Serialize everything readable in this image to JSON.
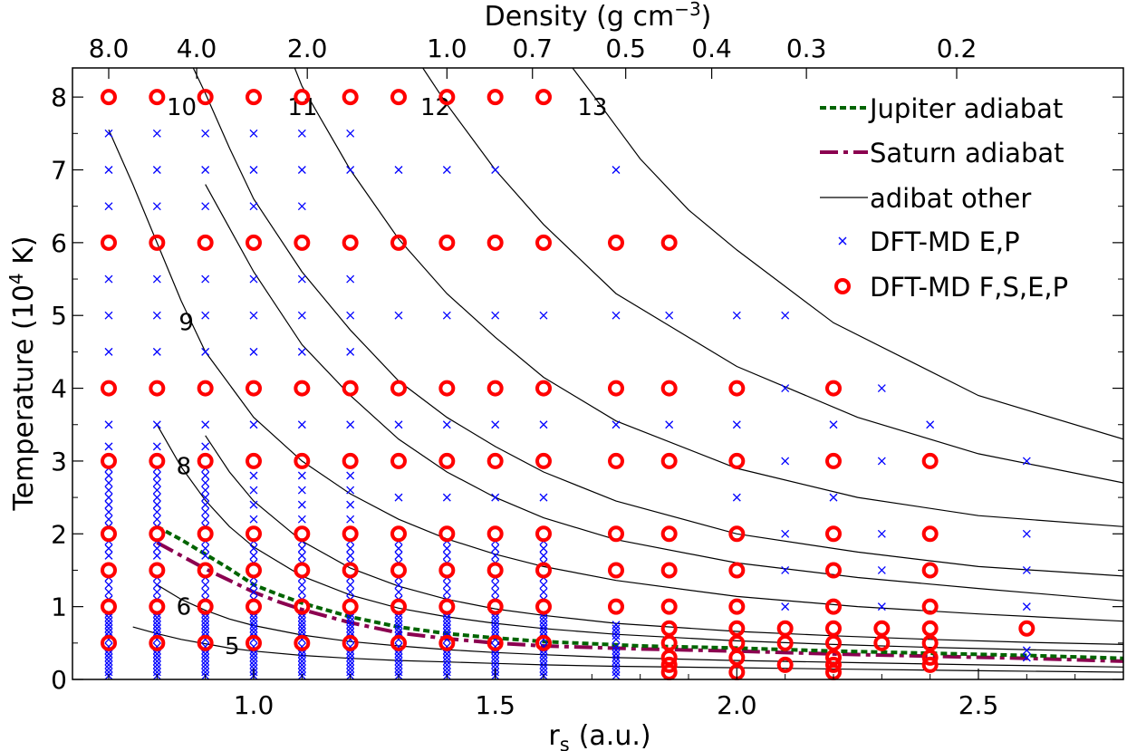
{
  "chart_data": {
    "type": "scatter",
    "xlabel": "r",
    "xlabel_sub": "s",
    "xlabel_unit": "(a.u.)",
    "ylabel_pre": "Temperature (10",
    "ylabel_sup": "4",
    "ylabel_post": " K)",
    "top_xlabel_pre": "Density (g cm",
    "top_xlabel_sup": "−3",
    "top_xlabel_post": ")",
    "xlim": [
      0.625,
      2.8
    ],
    "ylim": [
      0,
      8.4
    ],
    "x_ticks": [
      1.0,
      1.5,
      2.0,
      2.5
    ],
    "x_tick_labels": [
      "1.0",
      "1.5",
      "2.0",
      "2.5"
    ],
    "y_ticks": [
      0,
      1,
      2,
      3,
      4,
      5,
      6,
      7,
      8
    ],
    "y_tick_labels": [
      "0",
      "1",
      "2",
      "3",
      "4",
      "5",
      "6",
      "7",
      "8"
    ],
    "top_ticks": [
      {
        "rs": 0.7,
        "label": "8.0"
      },
      {
        "rs": 0.882,
        "label": "4.0"
      },
      {
        "rs": 1.111,
        "label": "2.0"
      },
      {
        "rs": 1.4,
        "label": "1.0"
      },
      {
        "rs": 1.577,
        "label": "0.7"
      },
      {
        "rs": 1.77,
        "label": "0.5"
      },
      {
        "rs": 1.948,
        "label": "0.4"
      },
      {
        "rs": 2.144,
        "label": "0.3"
      },
      {
        "rs": 2.455,
        "label": "0.2"
      }
    ],
    "series": [
      {
        "name": "Jupiter adiabat",
        "style": "dotted",
        "color": "#006400",
        "x": [
          0.8,
          0.85,
          0.9,
          0.95,
          1.0,
          1.05,
          1.1,
          1.2,
          1.3,
          1.4,
          1.5,
          1.6,
          1.8,
          2.0,
          2.2,
          2.4,
          2.6,
          2.8
        ],
        "y": [
          2.1,
          1.92,
          1.72,
          1.52,
          1.3,
          1.17,
          1.05,
          0.86,
          0.72,
          0.63,
          0.57,
          0.52,
          0.46,
          0.43,
          0.39,
          0.36,
          0.33,
          0.29
        ]
      },
      {
        "name": "Saturn adiabat",
        "style": "dashed",
        "color": "#8b0050",
        "x": [
          0.8,
          0.85,
          0.9,
          0.95,
          1.0,
          1.05,
          1.1,
          1.2,
          1.3,
          1.4,
          1.5,
          1.6,
          1.8,
          2.0,
          2.2,
          2.4,
          2.6,
          2.8
        ],
        "y": [
          1.88,
          1.7,
          1.52,
          1.36,
          1.2,
          1.07,
          0.96,
          0.78,
          0.64,
          0.56,
          0.5,
          0.46,
          0.42,
          0.39,
          0.35,
          0.32,
          0.29,
          0.25
        ]
      },
      {
        "name": "adibat other",
        "style": "solid",
        "color": "#000000"
      },
      {
        "name": "DFT-MD E,P",
        "style": "x-marker",
        "color": "#0000ff"
      },
      {
        "name": "DFT-MD F,S,E,P",
        "style": "circle-marker",
        "color": "#ff0000"
      }
    ],
    "adiabats": [
      {
        "label": "5",
        "label_at": [
          0.94,
          0.35
        ],
        "x": [
          0.75,
          0.8,
          0.85,
          0.9,
          0.95,
          1.0,
          1.1,
          1.2,
          1.3,
          1.4,
          1.5,
          1.6,
          1.75,
          2.0,
          2.25,
          2.5,
          2.8
        ],
        "y": [
          0.72,
          0.63,
          0.55,
          0.49,
          0.43,
          0.39,
          0.33,
          0.29,
          0.26,
          0.24,
          0.22,
          0.2,
          0.18,
          0.16,
          0.14,
          0.12,
          0.1
        ]
      },
      {
        "label": "6",
        "label_at": [
          0.84,
          0.89
        ],
        "x": [
          0.8,
          0.85,
          0.9,
          0.95,
          1.0,
          1.1,
          1.2,
          1.3,
          1.4,
          1.5,
          1.6,
          1.75,
          2.0,
          2.25,
          2.5,
          2.8
        ],
        "y": [
          1.3,
          1.1,
          0.95,
          0.83,
          0.74,
          0.61,
          0.52,
          0.46,
          0.41,
          0.37,
          0.34,
          0.3,
          0.26,
          0.23,
          0.2,
          0.17
        ]
      },
      {
        "label": "8",
        "label_at": [
          0.84,
          2.82
        ],
        "x": [
          0.8,
          0.85,
          0.9,
          0.95,
          1.0,
          1.1,
          1.2,
          1.3,
          1.4,
          1.5,
          1.6,
          1.75,
          2.0,
          2.2,
          2.4,
          2.6,
          2.8
        ],
        "y": [
          3.5,
          2.92,
          2.46,
          2.1,
          1.82,
          1.42,
          1.16,
          0.98,
          0.86,
          0.77,
          0.7,
          0.62,
          0.53,
          0.48,
          0.44,
          0.41,
          0.38
        ]
      },
      {
        "label": "",
        "x": [
          0.9,
          0.95,
          1.0,
          1.1,
          1.2,
          1.3,
          1.4,
          1.5,
          1.6,
          1.75,
          2.0,
          2.2,
          2.4,
          2.6,
          2.8
        ],
        "y": [
          3.35,
          2.85,
          2.45,
          1.9,
          1.53,
          1.28,
          1.1,
          0.97,
          0.88,
          0.77,
          0.66,
          0.6,
          0.55,
          0.51,
          0.48
        ]
      },
      {
        "label": "9",
        "label_at": [
          0.845,
          4.8
        ],
        "x": [
          0.7,
          0.75,
          0.8,
          0.85,
          0.9,
          1.0,
          1.1,
          1.2,
          1.3,
          1.4,
          1.5,
          1.6,
          1.75,
          2.0,
          2.25,
          2.5,
          2.8
        ],
        "y": [
          7.55,
          6.8,
          6.0,
          5.2,
          4.5,
          3.6,
          3.0,
          2.55,
          2.2,
          1.93,
          1.72,
          1.55,
          1.36,
          1.14,
          1.0,
          0.9,
          0.8
        ]
      },
      {
        "label": "",
        "x": [
          0.9,
          1.0,
          1.1,
          1.2,
          1.3,
          1.4,
          1.5,
          1.6,
          1.75,
          2.0,
          2.25,
          2.5,
          2.8
        ],
        "y": [
          6.8,
          5.6,
          4.6,
          3.9,
          3.3,
          2.85,
          2.5,
          2.22,
          1.92,
          1.6,
          1.4,
          1.25,
          1.08
        ]
      },
      {
        "label": "10",
        "label_at": [
          0.82,
          7.75
        ],
        "x": [
          0.875,
          0.9,
          0.95,
          1.0,
          1.1,
          1.2,
          1.3,
          1.4,
          1.5,
          1.6,
          1.75,
          2.0,
          2.25,
          2.5,
          2.8
        ],
        "y": [
          8.4,
          8.05,
          7.3,
          6.6,
          5.6,
          4.8,
          4.1,
          3.6,
          3.2,
          2.85,
          2.45,
          2.0,
          1.75,
          1.55,
          1.42
        ]
      },
      {
        "label": "11",
        "label_at": [
          1.07,
          7.75
        ],
        "x": [
          1.085,
          1.1,
          1.2,
          1.3,
          1.4,
          1.5,
          1.6,
          1.75,
          2.0,
          2.25,
          2.5,
          2.8
        ],
        "y": [
          8.4,
          8.15,
          7.0,
          6.05,
          5.3,
          4.7,
          4.15,
          3.55,
          2.9,
          2.5,
          2.25,
          2.1
        ]
      },
      {
        "label": "12",
        "label_at": [
          1.345,
          7.75
        ],
        "x": [
          1.35,
          1.4,
          1.5,
          1.6,
          1.75,
          2.0,
          2.25,
          2.5,
          2.8
        ],
        "y": [
          8.4,
          7.9,
          7.0,
          6.25,
          5.3,
          4.3,
          3.6,
          3.1,
          2.7
        ]
      },
      {
        "label": "13",
        "label_at": [
          1.67,
          7.75
        ],
        "x": [
          1.66,
          1.7,
          1.75,
          1.8,
          1.9,
          2.0,
          2.2,
          2.5,
          2.8
        ],
        "y": [
          8.4,
          8.05,
          7.6,
          7.15,
          6.45,
          5.9,
          4.9,
          3.9,
          3.3
        ]
      }
    ],
    "fsep_points": [
      {
        "x": 0.7,
        "y": [
          0.5,
          1,
          1.5,
          2,
          3,
          4,
          6,
          8
        ]
      },
      {
        "x": 0.8,
        "y": [
          0.5,
          1,
          1.5,
          2,
          3,
          4,
          6,
          8
        ]
      },
      {
        "x": 0.9,
        "y": [
          0.5,
          1,
          1.5,
          2,
          3,
          4,
          6,
          8
        ]
      },
      {
        "x": 1.0,
        "y": [
          0.5,
          1,
          1.5,
          2,
          3,
          4,
          6,
          8
        ]
      },
      {
        "x": 1.1,
        "y": [
          0.5,
          1,
          1.5,
          2,
          3,
          4,
          6,
          8
        ]
      },
      {
        "x": 1.2,
        "y": [
          0.5,
          1,
          1.5,
          2,
          3,
          4,
          6,
          8
        ]
      },
      {
        "x": 1.3,
        "y": [
          0.5,
          1,
          1.5,
          2,
          3,
          4,
          6,
          8
        ]
      },
      {
        "x": 1.4,
        "y": [
          0.5,
          1,
          1.5,
          2,
          3,
          4,
          6,
          8
        ]
      },
      {
        "x": 1.5,
        "y": [
          0.5,
          1,
          1.5,
          2,
          3,
          4,
          6,
          8
        ]
      },
      {
        "x": 1.6,
        "y": [
          0.5,
          1,
          1.5,
          2,
          3,
          4,
          6,
          8
        ]
      },
      {
        "x": 1.75,
        "y": [
          1,
          1.5,
          2,
          3,
          4,
          6
        ]
      },
      {
        "x": 1.86,
        "y": [
          0.1,
          0.2,
          0.3,
          0.5,
          0.7,
          1,
          1.5,
          2,
          3,
          4,
          6
        ]
      },
      {
        "x": 2.0,
        "y": [
          0.1,
          0.3,
          0.5,
          0.7,
          1,
          1.5,
          2,
          3,
          4
        ]
      },
      {
        "x": 2.1,
        "y": [
          0.2,
          0.5,
          0.7
        ]
      },
      {
        "x": 2.2,
        "y": [
          0.1,
          0.2,
          0.3,
          0.5,
          0.7,
          1,
          1.5,
          2,
          3,
          4
        ]
      },
      {
        "x": 2.3,
        "y": [
          0.5,
          0.7
        ]
      },
      {
        "x": 2.4,
        "y": [
          0.2,
          0.3,
          0.5,
          0.7,
          1,
          1.5,
          2,
          3
        ]
      },
      {
        "x": 2.6,
        "y": [
          0.7
        ]
      }
    ],
    "ep_points": [
      {
        "x": 0.7,
        "y": [
          0.05,
          0.1,
          0.15,
          0.2,
          0.25,
          0.3,
          0.35,
          0.4,
          0.45,
          0.55,
          0.6,
          0.65,
          0.7,
          0.75,
          0.8,
          0.85,
          0.9,
          1.1,
          1.2,
          1.3,
          1.4,
          1.7,
          1.8,
          1.9,
          2.1,
          2.2,
          2.3,
          2.4,
          2.5,
          2.6,
          2.7,
          2.8,
          2.9,
          3.2,
          3.5,
          4.5,
          5.0,
          5.5,
          6.5,
          7.0,
          7.5
        ]
      },
      {
        "x": 0.8,
        "y": [
          0.05,
          0.1,
          0.15,
          0.2,
          0.25,
          0.3,
          0.35,
          0.4,
          0.45,
          0.55,
          0.6,
          0.65,
          0.7,
          0.75,
          0.8,
          0.85,
          0.9,
          1.1,
          1.2,
          1.3,
          1.4,
          1.7,
          1.8,
          1.9,
          2.1,
          2.2,
          2.3,
          2.4,
          2.5,
          2.6,
          2.7,
          2.8,
          2.9,
          3.2,
          3.5,
          4.5,
          5.0,
          5.5,
          6.5,
          7.0,
          7.5
        ]
      },
      {
        "x": 0.9,
        "y": [
          0.05,
          0.1,
          0.15,
          0.2,
          0.25,
          0.3,
          0.35,
          0.4,
          0.45,
          0.55,
          0.6,
          0.65,
          0.7,
          0.75,
          0.8,
          0.85,
          0.9,
          1.1,
          1.2,
          1.3,
          1.4,
          1.7,
          1.8,
          1.9,
          2.1,
          2.2,
          2.3,
          2.4,
          2.5,
          2.6,
          2.7,
          2.8,
          2.9,
          3.2,
          3.5,
          4.5,
          5.0,
          5.5,
          6.5,
          7.0,
          7.5
        ]
      },
      {
        "x": 1.0,
        "y": [
          0.05,
          0.1,
          0.15,
          0.2,
          0.25,
          0.3,
          0.35,
          0.4,
          0.45,
          0.55,
          0.6,
          0.65,
          0.7,
          0.75,
          0.8,
          0.85,
          0.9,
          1.1,
          1.2,
          1.3,
          1.4,
          1.6,
          1.7,
          1.8,
          1.9,
          2.2,
          2.4,
          2.6,
          2.8,
          3.5,
          4.5,
          5.0,
          5.5,
          6.5,
          7.0,
          7.5
        ]
      },
      {
        "x": 1.1,
        "y": [
          0.05,
          0.1,
          0.15,
          0.2,
          0.25,
          0.3,
          0.35,
          0.4,
          0.45,
          0.55,
          0.6,
          0.65,
          0.7,
          0.75,
          0.8,
          0.85,
          0.9,
          1.1,
          1.2,
          1.3,
          1.4,
          1.6,
          1.7,
          1.8,
          1.9,
          2.2,
          2.4,
          2.6,
          2.8,
          3.5,
          4.5,
          5.0,
          5.5,
          6.5,
          7.0,
          7.5
        ]
      },
      {
        "x": 1.2,
        "y": [
          0.05,
          0.1,
          0.15,
          0.2,
          0.25,
          0.3,
          0.35,
          0.4,
          0.45,
          0.55,
          0.6,
          0.65,
          0.7,
          0.75,
          0.8,
          0.85,
          0.9,
          1.1,
          1.2,
          1.3,
          1.4,
          1.6,
          1.7,
          1.8,
          1.9,
          2.2,
          2.4,
          2.6,
          2.8,
          3.5,
          4.5,
          5.0,
          5.5,
          7.0,
          7.5
        ]
      },
      {
        "x": 1.3,
        "y": [
          0.05,
          0.1,
          0.15,
          0.2,
          0.25,
          0.3,
          0.35,
          0.4,
          0.45,
          0.55,
          0.6,
          0.65,
          0.7,
          0.75,
          0.8,
          0.85,
          0.9,
          1.1,
          1.2,
          1.3,
          1.4,
          1.6,
          1.7,
          1.8,
          1.9,
          2.5,
          3.5,
          5.0,
          7.0
        ]
      },
      {
        "x": 1.4,
        "y": [
          0.05,
          0.1,
          0.15,
          0.2,
          0.25,
          0.3,
          0.35,
          0.4,
          0.45,
          0.55,
          0.6,
          0.65,
          0.7,
          0.75,
          0.8,
          0.85,
          0.9,
          1.1,
          1.2,
          1.3,
          1.4,
          1.6,
          1.7,
          1.8,
          1.9,
          2.5,
          3.5,
          5.0,
          7.0
        ]
      },
      {
        "x": 1.5,
        "y": [
          0.05,
          0.1,
          0.15,
          0.2,
          0.25,
          0.3,
          0.35,
          0.4,
          0.45,
          0.55,
          0.6,
          0.65,
          0.7,
          0.75,
          0.8,
          0.85,
          0.9,
          1.1,
          1.2,
          1.3,
          1.4,
          1.6,
          1.7,
          1.8,
          1.9,
          2.5,
          3.5,
          5.0,
          7.0
        ]
      },
      {
        "x": 1.6,
        "y": [
          0.05,
          0.1,
          0.15,
          0.2,
          0.25,
          0.3,
          0.35,
          0.4,
          0.45,
          0.55,
          0.6,
          0.65,
          0.7,
          0.75,
          0.8,
          0.85,
          0.9,
          1.1,
          1.2,
          1.3,
          1.4,
          1.6,
          1.7,
          1.8,
          1.9,
          2.5,
          3.5,
          5.0
        ]
      },
      {
        "x": 1.75,
        "y": [
          0.05,
          0.1,
          0.15,
          0.2,
          0.25,
          0.3,
          0.35,
          0.4,
          0.45,
          0.55,
          0.6,
          0.65,
          0.7,
          0.75,
          3.5,
          5.0,
          7.0
        ]
      },
      {
        "x": 1.86,
        "y": [
          3.5,
          5.0
        ]
      },
      {
        "x": 2.0,
        "y": [
          2.5,
          3.5,
          5.0
        ]
      },
      {
        "x": 2.1,
        "y": [
          1.0,
          1.5,
          2.0,
          3.0,
          4.0,
          5.0
        ]
      },
      {
        "x": 2.2,
        "y": [
          2.5,
          3.5
        ]
      },
      {
        "x": 2.3,
        "y": [
          1.0,
          1.5,
          2.0,
          3.0,
          4.0
        ]
      },
      {
        "x": 2.4,
        "y": [
          3.5
        ]
      },
      {
        "x": 2.6,
        "y": [
          0.3,
          0.4,
          1.0,
          1.5,
          2.0,
          3.0
        ]
      }
    ]
  }
}
